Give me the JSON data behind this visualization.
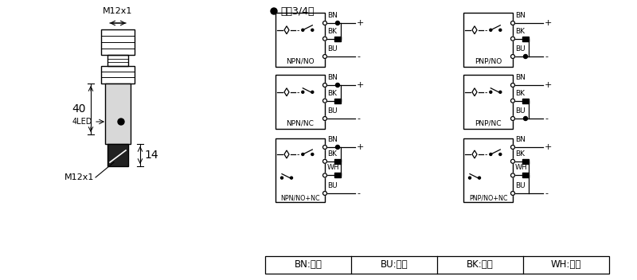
{
  "bg_color": "#ffffff",
  "line_color": "#000000",
  "title": "直入3/4线",
  "sensor_label_top": "M12x1",
  "sensor_label_bottom": "M12x1",
  "dim_40": "40",
  "dim_14": "14",
  "dim_4led": "4LED",
  "color_table": [
    "BN:棕色",
    "BU:兰色",
    "BK:黑色",
    "WH:白色"
  ],
  "figsize": [
    8.0,
    3.52
  ],
  "dpi": 100
}
